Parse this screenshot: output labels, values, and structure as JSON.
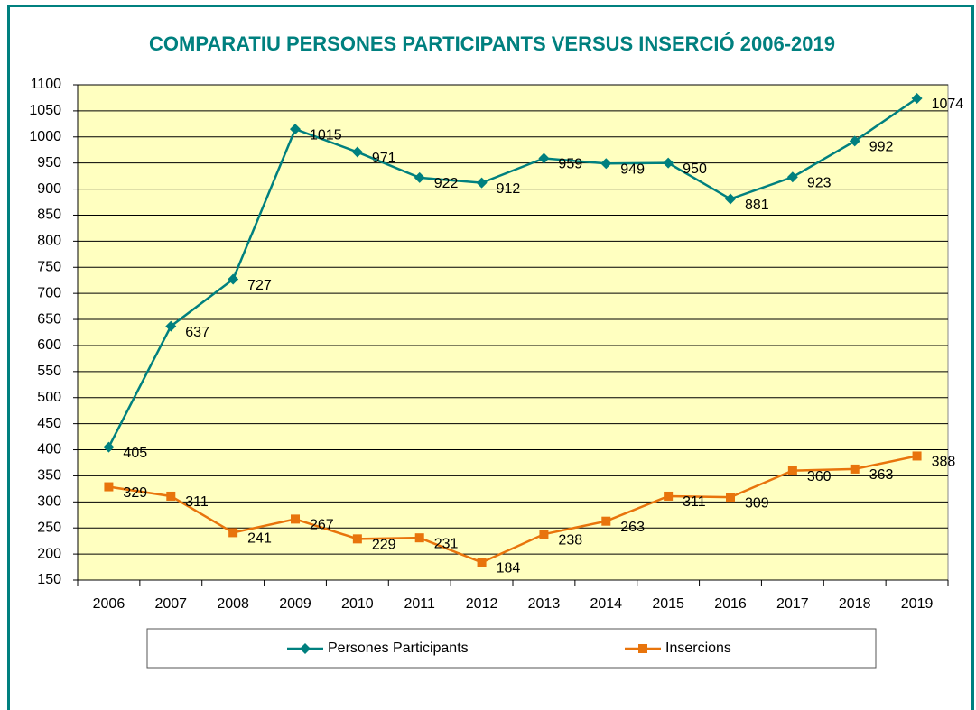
{
  "chart_data": {
    "type": "line",
    "title": "COMPARATIU PERSONES PARTICIPANTS VERSUS INSERCIÓ 2006-2019",
    "categories": [
      "2006",
      "2007",
      "2008",
      "2009",
      "2010",
      "2011",
      "2012",
      "2013",
      "2014",
      "2015",
      "2016",
      "2017",
      "2018",
      "2019"
    ],
    "series": [
      {
        "name": "Persones Participants",
        "color": "#00807f",
        "marker": "diamond",
        "values": [
          405,
          637,
          727,
          1015,
          971,
          922,
          912,
          959,
          949,
          950,
          881,
          923,
          992,
          1074
        ]
      },
      {
        "name": "Insercions",
        "color": "#e8740c",
        "marker": "square",
        "values": [
          329,
          311,
          241,
          267,
          229,
          231,
          184,
          238,
          263,
          311,
          309,
          360,
          363,
          388
        ]
      }
    ],
    "ylim": [
      150,
      1100
    ],
    "yticks": [
      150,
      200,
      250,
      300,
      350,
      400,
      450,
      500,
      550,
      600,
      650,
      700,
      750,
      800,
      850,
      900,
      950,
      1000,
      1050,
      1100
    ],
    "grid": true,
    "legend": "bottom",
    "data_labels": true
  }
}
